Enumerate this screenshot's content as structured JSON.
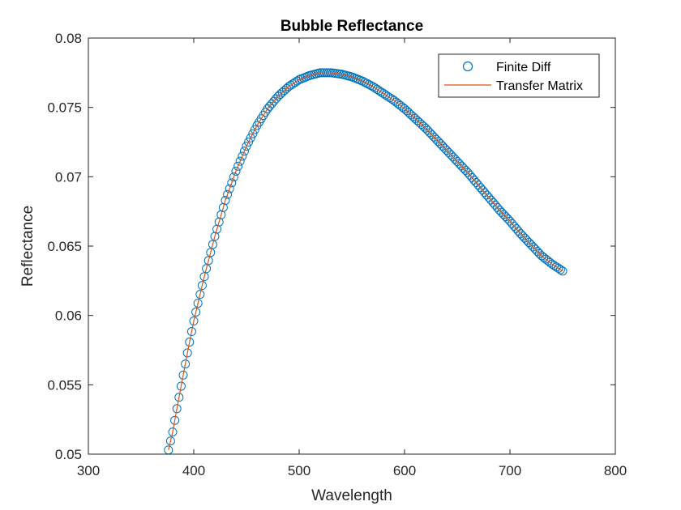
{
  "chart_data": {
    "type": "line",
    "title": "Bubble Reflectance",
    "xlabel": "Wavelength",
    "ylabel": "Reflectance",
    "xlim": [
      300,
      800
    ],
    "ylim": [
      0.05,
      0.08
    ],
    "xticks": [
      300,
      400,
      500,
      600,
      700,
      800
    ],
    "xtick_labels": [
      "300",
      "400",
      "500",
      "600",
      "700",
      "800"
    ],
    "yticks": [
      0.05,
      0.055,
      0.06,
      0.065,
      0.07,
      0.075,
      0.08
    ],
    "ytick_labels": [
      "0.05",
      "0.055",
      "0.06",
      "0.065",
      "0.07",
      "0.075",
      "0.08"
    ],
    "grid": false,
    "legend_position": "top-right",
    "series": [
      {
        "name": "Finite Diff",
        "style": "circle-markers",
        "color": "#0072BD",
        "x": [
          376,
          380,
          385,
          390,
          395,
          400,
          410,
          420,
          430,
          440,
          450,
          460,
          470,
          480,
          490,
          500,
          510,
          520,
          530,
          540,
          550,
          560,
          570,
          580,
          590,
          600,
          610,
          620,
          630,
          640,
          650,
          660,
          670,
          680,
          690,
          700,
          710,
          720,
          730,
          740,
          750
        ],
        "y": [
          0.0503,
          0.0516,
          0.0537,
          0.0557,
          0.0577,
          0.0596,
          0.0628,
          0.0657,
          0.0683,
          0.0704,
          0.0722,
          0.0737,
          0.0749,
          0.0758,
          0.0765,
          0.077,
          0.0773,
          0.0775,
          0.0775,
          0.0774,
          0.0772,
          0.0769,
          0.0765,
          0.076,
          0.0755,
          0.0749,
          0.0742,
          0.0735,
          0.0727,
          0.0719,
          0.0711,
          0.0703,
          0.0694,
          0.0685,
          0.0676,
          0.0668,
          0.0659,
          0.0651,
          0.0643,
          0.0637,
          0.0632
        ]
      },
      {
        "name": "Transfer Matrix",
        "style": "solid-line",
        "color": "#D95319",
        "x": [
          376,
          380,
          385,
          390,
          395,
          400,
          410,
          420,
          430,
          440,
          450,
          460,
          470,
          480,
          490,
          500,
          510,
          520,
          530,
          540,
          550,
          560,
          570,
          580,
          590,
          600,
          610,
          620,
          630,
          640,
          650,
          660,
          670,
          680,
          690,
          700,
          710,
          720,
          730,
          740,
          750
        ],
        "y": [
          0.0503,
          0.0516,
          0.0537,
          0.0557,
          0.0577,
          0.0596,
          0.0628,
          0.0657,
          0.0683,
          0.0704,
          0.0722,
          0.0737,
          0.0749,
          0.0758,
          0.0765,
          0.077,
          0.0773,
          0.0775,
          0.0775,
          0.0774,
          0.0772,
          0.0769,
          0.0765,
          0.076,
          0.0755,
          0.0749,
          0.0742,
          0.0735,
          0.0727,
          0.0719,
          0.0711,
          0.0703,
          0.0694,
          0.0685,
          0.0676,
          0.0668,
          0.0659,
          0.0651,
          0.0643,
          0.0637,
          0.0632
        ]
      }
    ]
  }
}
